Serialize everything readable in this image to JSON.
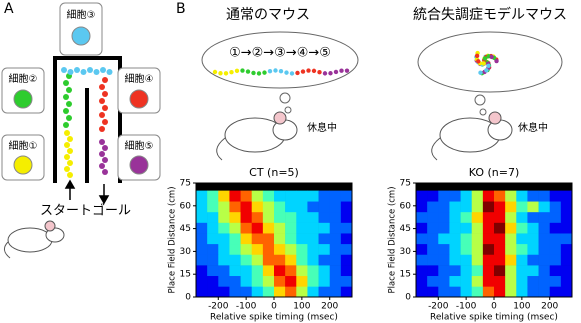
{
  "panel_a": {
    "label": "A",
    "cells": [
      "細胞①",
      "細胞②",
      "細胞③",
      "細胞④",
      "細胞⑤"
    ],
    "start": "スタート",
    "goal": "ゴール"
  },
  "panel_b": {
    "label": "B",
    "normal_title": "通常のマウス",
    "model_title": "統合失調症モデルマウス",
    "sequence": "①→②→③→④→⑤",
    "rest": "休息中"
  },
  "chart_data": [
    {
      "type": "heatmap",
      "title": "CT (n=5)",
      "x_label": "Relative spike timing (msec)",
      "y_label": "Place Field Distance (cm)",
      "xlim": [
        -280,
        280
      ],
      "ylim": [
        0,
        75
      ],
      "xticks": [
        -200,
        -100,
        0,
        100,
        200
      ],
      "yticks": [
        0,
        15,
        30,
        45,
        60,
        75
      ],
      "xbins": [
        -280,
        -240,
        -200,
        -160,
        -120,
        -80,
        -40,
        0,
        40,
        80,
        120,
        160,
        200,
        240,
        280
      ],
      "ybins": [
        0,
        7,
        14,
        21,
        28,
        35,
        42,
        49,
        56,
        63,
        70
      ],
      "clim": [
        0,
        9
      ],
      "values": [
        [
          1,
          1,
          1,
          2,
          2,
          3,
          4,
          6,
          7,
          5,
          3,
          2,
          2,
          1
        ],
        [
          1,
          1,
          2,
          2,
          3,
          4,
          5,
          7,
          8,
          6,
          4,
          3,
          2,
          2
        ],
        [
          1,
          2,
          2,
          3,
          3,
          4,
          6,
          8,
          7,
          5,
          4,
          3,
          2,
          1
        ],
        [
          2,
          2,
          3,
          3,
          4,
          5,
          7,
          7,
          6,
          4,
          3,
          2,
          2,
          1
        ],
        [
          2,
          2,
          3,
          4,
          5,
          6,
          7,
          6,
          5,
          4,
          3,
          3,
          2,
          2
        ],
        [
          2,
          3,
          3,
          4,
          6,
          7,
          7,
          5,
          4,
          3,
          3,
          2,
          2,
          1
        ],
        [
          2,
          3,
          4,
          5,
          7,
          8,
          6,
          5,
          4,
          3,
          3,
          3,
          2,
          2
        ],
        [
          3,
          3,
          5,
          6,
          8,
          7,
          5,
          4,
          4,
          3,
          3,
          2,
          2,
          1
        ],
        [
          3,
          4,
          5,
          7,
          8,
          6,
          5,
          4,
          3,
          3,
          2,
          2,
          2,
          1
        ],
        [
          3,
          4,
          6,
          8,
          7,
          5,
          4,
          3,
          3,
          3,
          3,
          2,
          2,
          2
        ]
      ]
    },
    {
      "type": "heatmap",
      "title": "KO (n=7)",
      "x_label": "Relative spike timing (msec)",
      "y_label": "Place Field Distance (cm)",
      "xlim": [
        -280,
        280
      ],
      "ylim": [
        0,
        75
      ],
      "xticks": [
        -200,
        -100,
        0,
        100,
        200
      ],
      "yticks": [
        0,
        15,
        30,
        45,
        60,
        75
      ],
      "xbins": [
        -280,
        -240,
        -200,
        -160,
        -120,
        -80,
        -40,
        0,
        40,
        80,
        120,
        160,
        200,
        240,
        280
      ],
      "ybins": [
        0,
        7,
        14,
        21,
        28,
        35,
        42,
        49,
        56,
        63,
        70
      ],
      "clim": [
        0,
        9
      ],
      "values": [
        [
          1,
          1,
          2,
          2,
          3,
          4,
          7,
          8,
          5,
          3,
          2,
          2,
          1,
          1
        ],
        [
          1,
          2,
          2,
          3,
          3,
          5,
          8,
          8,
          5,
          3,
          2,
          2,
          2,
          1
        ],
        [
          1,
          1,
          2,
          2,
          3,
          4,
          8,
          9,
          5,
          3,
          3,
          2,
          1,
          1
        ],
        [
          2,
          2,
          2,
          3,
          3,
          5,
          8,
          8,
          6,
          3,
          2,
          2,
          2,
          1
        ],
        [
          1,
          2,
          2,
          3,
          4,
          5,
          9,
          8,
          5,
          4,
          3,
          2,
          2,
          1
        ],
        [
          2,
          2,
          3,
          3,
          4,
          5,
          8,
          8,
          5,
          3,
          3,
          2,
          2,
          2
        ],
        [
          1,
          2,
          2,
          3,
          3,
          5,
          8,
          9,
          6,
          4,
          3,
          2,
          1,
          1
        ],
        [
          2,
          2,
          2,
          3,
          4,
          6,
          8,
          8,
          5,
          3,
          2,
          2,
          2,
          1
        ],
        [
          1,
          2,
          2,
          3,
          3,
          5,
          9,
          8,
          6,
          4,
          5,
          3,
          2,
          1
        ],
        [
          1,
          1,
          2,
          2,
          3,
          5,
          8,
          7,
          5,
          3,
          2,
          2,
          1,
          1
        ]
      ]
    }
  ]
}
